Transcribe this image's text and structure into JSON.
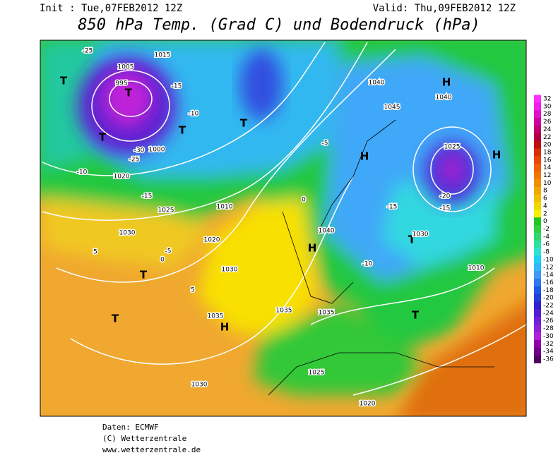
{
  "header": {
    "init": "Init : Tue,07FEB2012 12Z",
    "valid": "Valid: Thu,09FEB2012 12Z",
    "title": "850 hPa Temp. (Grad C) und Bodendruck (hPa)"
  },
  "legend": {
    "labels": [
      "32",
      "30",
      "28",
      "26",
      "24",
      "22",
      "20",
      "18",
      "16",
      "14",
      "12",
      "10",
      "8",
      "6",
      "4",
      "2",
      "0",
      "-2",
      "-4",
      "-6",
      "-8",
      "-10",
      "-12",
      "-14",
      "-16",
      "-18",
      "-20",
      "-22",
      "-24",
      "-26",
      "-28",
      "-30",
      "-32",
      "-34",
      "-36"
    ],
    "colors": [
      "#ff30ff",
      "#f020e8",
      "#e010c8",
      "#d000a0",
      "#c00070",
      "#b00040",
      "#c01010",
      "#d83000",
      "#e84800",
      "#f06000",
      "#f07800",
      "#f09000",
      "#f0a800",
      "#f0c000",
      "#f0d800",
      "#f8f000",
      "#20c820",
      "#30d040",
      "#30d870",
      "#30e0a0",
      "#30e0d0",
      "#20d0f0",
      "#30b8f8",
      "#4098f8",
      "#3078f0",
      "#2058e8",
      "#2040d8",
      "#3020d0",
      "#5020d0",
      "#7020d8",
      "#9020d8",
      "#b020d8",
      "#9000a8",
      "#700088",
      "#500060"
    ]
  },
  "map": {
    "labels": [
      "H",
      "H",
      "H",
      "H",
      "H",
      "T",
      "T",
      "T",
      "T",
      "T",
      "T",
      "T",
      "T",
      "T",
      "1030",
      "1030",
      "1035",
      "1035",
      "1030",
      "1020",
      "1025",
      "1040",
      "1045",
      "1040",
      "1025",
      "1000",
      "995",
      "1005",
      "1015",
      "1020",
      "1010",
      "1010",
      "-25",
      "-30",
      "-15",
      "-10",
      "-5",
      "0",
      "5",
      "-10",
      "-15",
      "-20",
      "-15",
      "-5",
      "-25",
      "0",
      "5",
      "1025",
      "1020",
      "1035",
      "1040",
      "1030",
      "-10",
      "-15"
    ]
  },
  "footer": [
    "Daten: ECMWF",
    "(C) Wetterzentrale",
    "www.wetterzentrale.de"
  ]
}
